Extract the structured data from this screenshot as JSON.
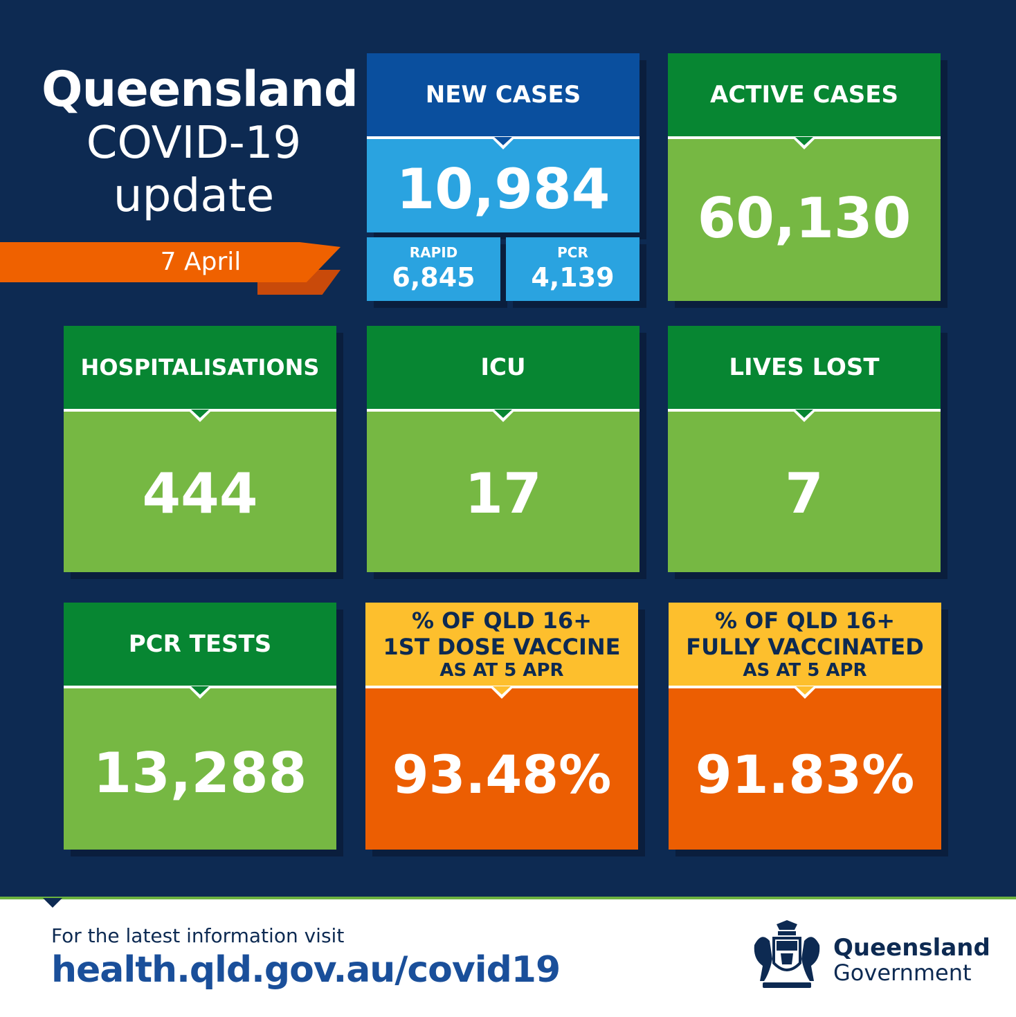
{
  "header": {
    "line1": "Queensland",
    "line2": "COVID-19",
    "line3": "update",
    "date": "7 April"
  },
  "tiles": {
    "new_cases": {
      "label": "NEW CASES",
      "value": "10,984",
      "rapid_label": "RAPID",
      "rapid_value": "6,845",
      "pcr_label": "PCR",
      "pcr_value": "4,139"
    },
    "active_cases": {
      "label": "ACTIVE CASES",
      "value": "60,130"
    },
    "hospitalisations": {
      "label": "HOSPITALISATIONS",
      "value": "444"
    },
    "icu": {
      "label": "ICU",
      "value": "17"
    },
    "lives_lost": {
      "label": "LIVES LOST",
      "value": "7"
    },
    "pcr_tests": {
      "label": "PCR TESTS",
      "value": "13,288"
    },
    "first_dose": {
      "line1": "% OF QLD 16+",
      "line2": "1ST DOSE VACCINE",
      "line3": "AS AT 5 APR",
      "value": "93.48%"
    },
    "fully_vaccinated": {
      "line1": "% OF QLD 16+",
      "line2": "FULLY VACCINATED",
      "line3": "AS AT 5 APR",
      "value": "91.83%"
    }
  },
  "footer": {
    "info": "For the latest information visit",
    "url": "health.qld.gov.au/covid19",
    "logo_line1": "Queensland",
    "logo_line2": "Government"
  },
  "colors": {
    "navy": "#0d2a52",
    "dark_green": "#078632",
    "light_green": "#76b843",
    "dark_blue": "#0a4f9e",
    "light_blue": "#2aa3e0",
    "yellow": "#fdbf2d",
    "orange": "#ec5e02"
  }
}
